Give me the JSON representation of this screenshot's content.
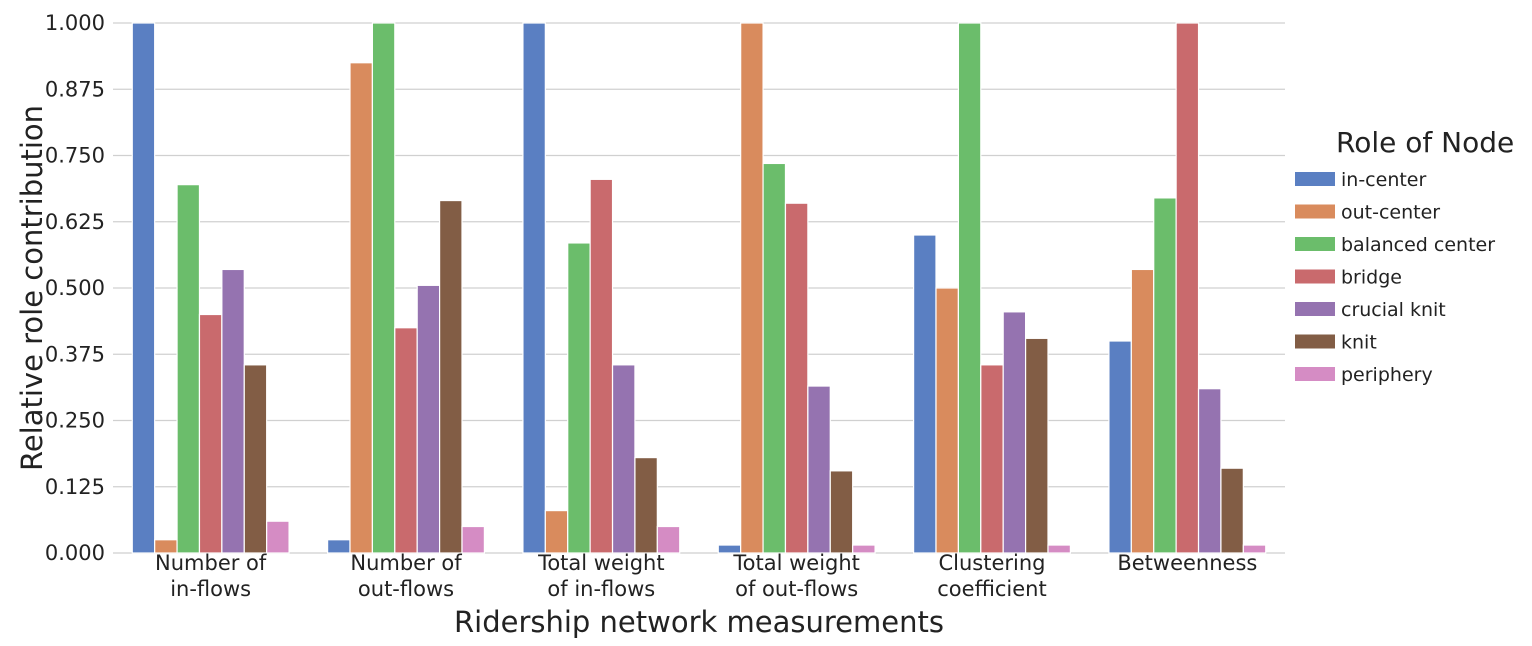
{
  "chart_data": {
    "type": "bar",
    "xlabel": "Ridership network measurements",
    "ylabel": "Relative role contribution",
    "ylim": [
      0,
      1
    ],
    "yticks": [
      "0.000",
      "0.125",
      "0.250",
      "0.375",
      "0.500",
      "0.625",
      "0.750",
      "0.875",
      "1.000"
    ],
    "grid": true,
    "legend_title": "Role of Node",
    "legend_position": "right",
    "categories": [
      [
        "Number of",
        "in-flows"
      ],
      [
        "Number of",
        "out-flows"
      ],
      [
        "Total weight",
        "of in-flows"
      ],
      [
        "Total weight",
        "of out-flows"
      ],
      [
        "Clustering",
        "coefficient"
      ],
      [
        "Betweenness"
      ]
    ],
    "series": [
      {
        "name": "in-center",
        "color": "#5a7fc2",
        "values": [
          1.0,
          0.025,
          1.0,
          0.015,
          0.6,
          0.4
        ]
      },
      {
        "name": "out-center",
        "color": "#d98b5d",
        "values": [
          0.025,
          0.925,
          0.08,
          1.0,
          0.5,
          0.535
        ]
      },
      {
        "name": "balanced center",
        "color": "#6bbd6b",
        "values": [
          0.695,
          1.0,
          0.585,
          0.735,
          1.0,
          0.67
        ]
      },
      {
        "name": "bridge",
        "color": "#c96a6d",
        "values": [
          0.45,
          0.425,
          0.705,
          0.66,
          0.355,
          1.0
        ]
      },
      {
        "name": "crucial knit",
        "color": "#9573b0",
        "values": [
          0.535,
          0.505,
          0.355,
          0.315,
          0.455,
          0.31
        ]
      },
      {
        "name": "knit",
        "color": "#825d45",
        "values": [
          0.355,
          0.665,
          0.18,
          0.155,
          0.405,
          0.16
        ]
      },
      {
        "name": "periphery",
        "color": "#d58cc4",
        "values": [
          0.06,
          0.05,
          0.05,
          0.015,
          0.015,
          0.015
        ]
      }
    ]
  }
}
